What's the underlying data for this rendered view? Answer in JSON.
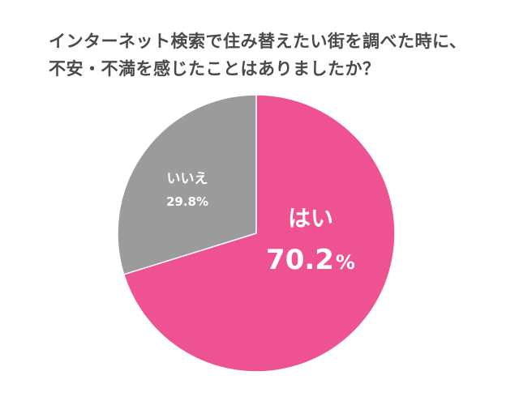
{
  "title_lines": [
    "インターネット検索で住み替えたい街を調べた時に、",
    "不安・不満を感じたことはありましたか？"
  ],
  "chart_data": {
    "type": "pie",
    "title": "インターネット検索で住み替えたい街を調べた時に、不安・不満を感じたことはありましたか？",
    "slices": [
      {
        "label": "はい",
        "value": 70.2,
        "value_text": "70.2",
        "unit": "%",
        "color": "#ef5293"
      },
      {
        "label": "いいえ",
        "value": 29.8,
        "value_text": "29.8%",
        "color": "#9b9b9b"
      }
    ],
    "start_angle": "12 o'clock",
    "direction": "clockwise",
    "legend": "none (labels inside slices)"
  }
}
